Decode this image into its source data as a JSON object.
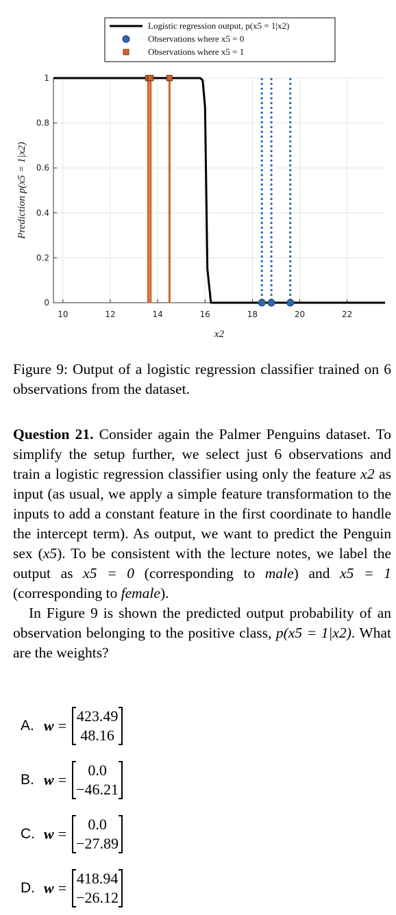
{
  "chart_data": {
    "type": "line",
    "xlabel": "x2",
    "ylabel": "Prediction p(x5 = 1|x2)",
    "xlim": [
      9.6,
      23.6
    ],
    "ylim": [
      0,
      1
    ],
    "x_ticks": [
      10,
      12,
      14,
      16,
      18,
      20,
      22
    ],
    "y_ticks": [
      0,
      0.2,
      0.4,
      0.6,
      0.8,
      1
    ],
    "y_tick_labels": [
      "0",
      "0.2",
      "0.4",
      "0.6",
      "0.8",
      "1"
    ],
    "grid": true,
    "legend_position": "top-center outside",
    "series": [
      {
        "name": "Logistic regression output, p(x5 = 1|x2)",
        "kind": "line",
        "color": "#000000",
        "x": [
          9.6,
          15.8,
          15.9,
          16.0,
          16.1,
          16.25,
          23.6
        ],
        "y": [
          1.0,
          1.0,
          0.99,
          0.87,
          0.15,
          0.0,
          0.0
        ]
      },
      {
        "name": "Observations where x5 = 0",
        "kind": "stem-dotted",
        "color": "#2e6ab0",
        "x": [
          18.4,
          18.8,
          19.6
        ],
        "y": [
          0,
          0,
          0
        ]
      },
      {
        "name": "Observations where x5 = 1",
        "kind": "stem-solid",
        "color": "#d2622a",
        "x": [
          13.6,
          13.7,
          14.5
        ],
        "y": [
          1,
          1,
          1
        ]
      }
    ]
  },
  "legend": {
    "items": [
      "Logistic regression output, p(x5 = 1|x2)",
      "Observations where x5 = 0",
      "Observations where x5 = 1"
    ]
  },
  "caption": {
    "text": "Figure 9:  Output of a logistic regression classifier trained on 6 observations from the dataset."
  },
  "question": {
    "label": "Question 21.",
    "p1_a": " Consider again the Palmer Penguins dataset. To simplify the setup further, we select just 6 observations and train a logistic regression classifier using only the feature ",
    "x2": "x2",
    "p1_b": " as input (as usual, we apply a simple feature transformation to the inputs to add a constant feature in the first coordinate to handle the intercept term).  As output, we want to predict the Penguin sex (",
    "x5": "x5",
    "p1_c": ").  To be consistent with the lecture notes, we label the output as ",
    "eq0": "x5 = 0",
    "p1_d": " (corresponding to ",
    "male": "male",
    "p1_e": ") and ",
    "eq1": "x5 = 1",
    "p1_f": " (corresponding to ",
    "female": "female",
    "p1_g": ").",
    "p2_a": "In Figure 9 is shown the predicted output probability of an observation belonging to the positive class, ",
    "p2_expr": "p(x5 = 1|x2)",
    "p2_b": ". What are the weights?"
  },
  "options": [
    {
      "letter": "A.",
      "w": "w",
      "eq": "=",
      "top": "423.49",
      "bottom": "48.16"
    },
    {
      "letter": "B.",
      "w": "w",
      "eq": "=",
      "top": "0.0",
      "bottom": "−46.21"
    },
    {
      "letter": "C.",
      "w": "w",
      "eq": "=",
      "top": "0.0",
      "bottom": "−27.89"
    },
    {
      "letter": "D.",
      "w": "w",
      "eq": "=",
      "top": "418.94",
      "bottom": "−26.12"
    }
  ]
}
